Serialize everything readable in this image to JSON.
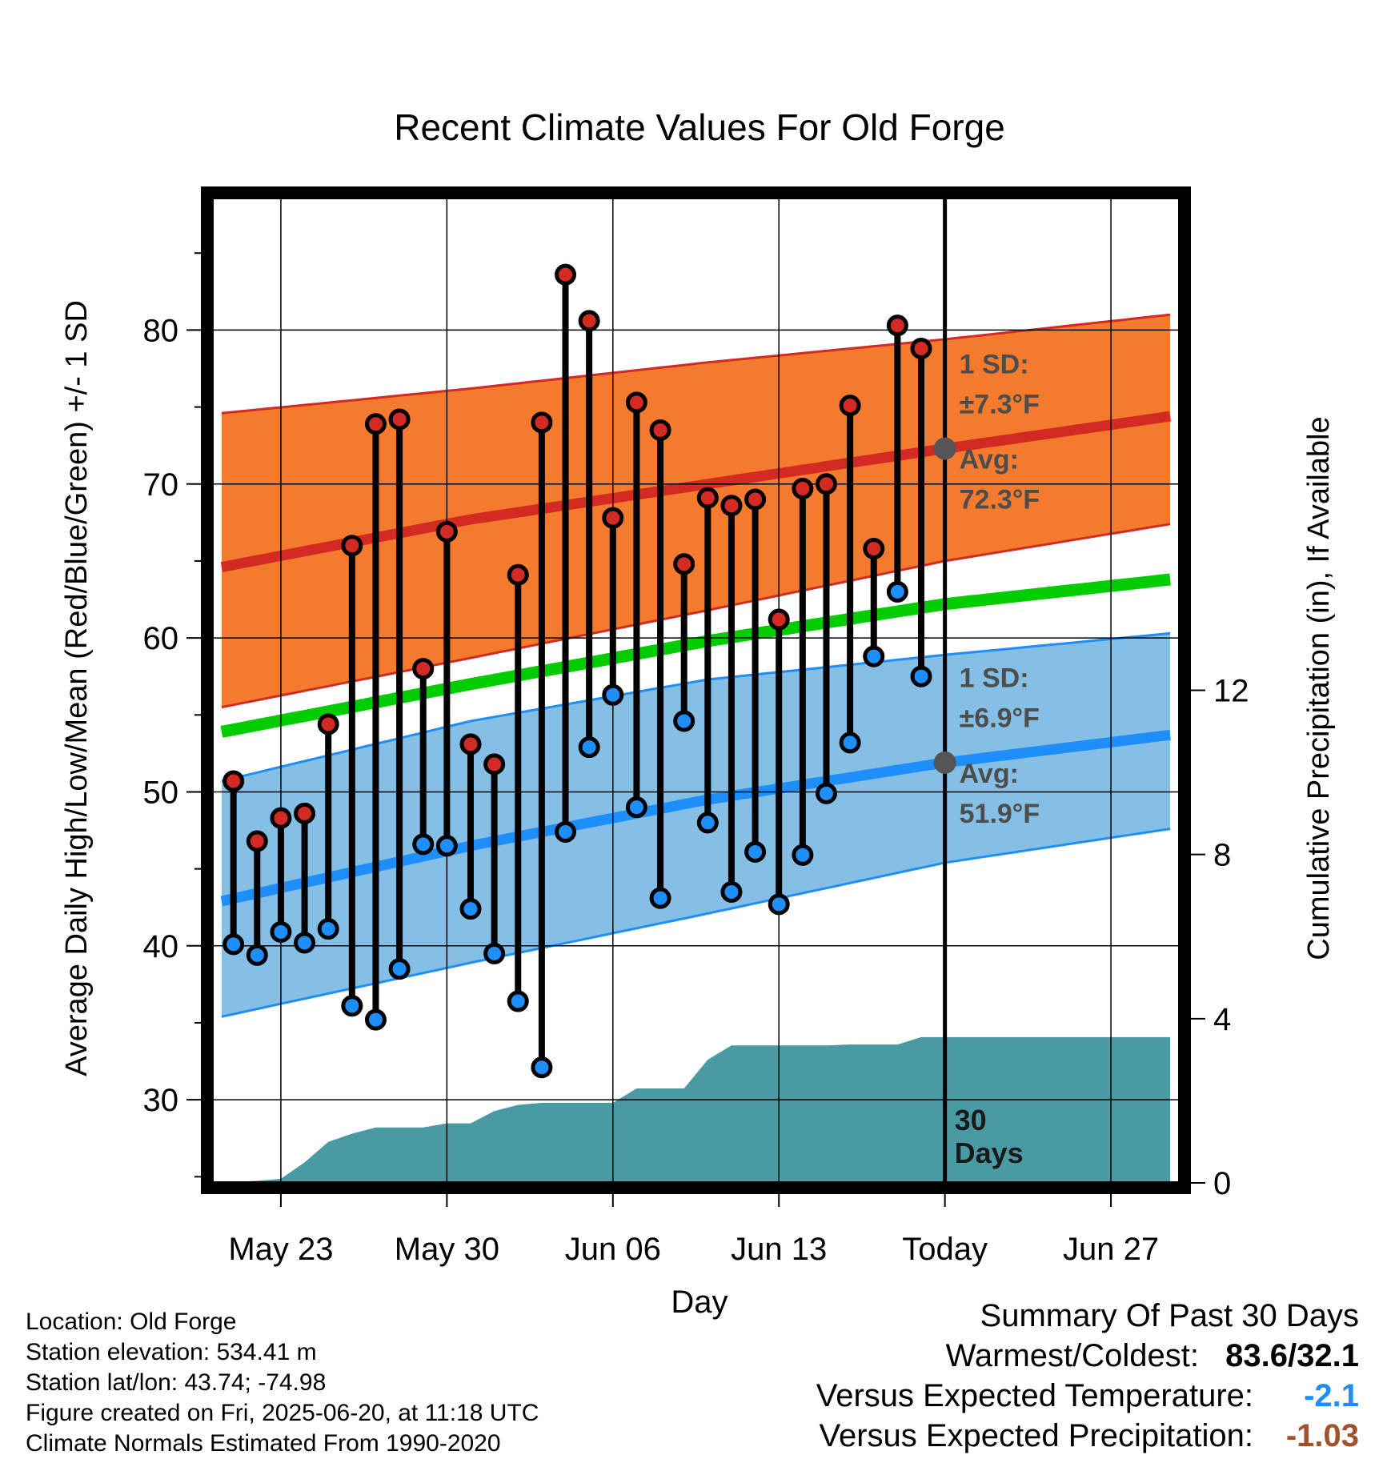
{
  "chart_data": {
    "type": "line",
    "title": "Recent Climate Values For Old Forge",
    "xlabel": "Day",
    "ylabel": "Average Daily High/Low/Mean (Red/Blue/Green) +/- 1 SD",
    "y2label": "Cumulative Precipitation (in), If Available",
    "x_tick_labels": [
      "May 23",
      "May 30",
      "Jun 06",
      "Jun 13",
      "Today",
      "Jun 27"
    ],
    "y_ticks": [
      30,
      40,
      50,
      60,
      70,
      80
    ],
    "y2_ticks": [
      0,
      4,
      8,
      12
    ],
    "ylim": [
      24.6,
      88.6
    ],
    "y2lim": [
      0,
      24
    ],
    "x_range_days": [
      -30.9,
      9.9
    ],
    "today_label": "30 Days",
    "daily_high": [
      50.7,
      46.8,
      48.3,
      48.6,
      54.4,
      66.0,
      73.9,
      74.2,
      58.0,
      66.9,
      53.1,
      51.8,
      64.1,
      74.0,
      83.6,
      80.6,
      67.8,
      75.3,
      73.5,
      64.8,
      69.1,
      68.6,
      69.0,
      61.2,
      69.7,
      70.0,
      75.1,
      65.8,
      80.3,
      78.8
    ],
    "daily_low": [
      40.1,
      39.4,
      40.9,
      40.2,
      41.1,
      36.1,
      35.2,
      38.5,
      46.6,
      46.5,
      42.4,
      39.5,
      36.4,
      32.1,
      47.4,
      52.9,
      56.3,
      49.0,
      43.1,
      54.6,
      48.0,
      43.5,
      46.1,
      42.7,
      45.9,
      49.9,
      53.2,
      58.8,
      63.0,
      57.5
    ],
    "normal_high": {
      "day": [
        -30.5,
        -20,
        -10,
        0,
        9.5
      ],
      "avg": [
        64.6,
        67.7,
        70.0,
        72.3,
        74.4
      ],
      "sd_upper": [
        74.6,
        76.2,
        77.9,
        79.4,
        81.0
      ],
      "sd_lower": [
        55.5,
        58.7,
        61.8,
        65.0,
        67.4
      ]
    },
    "normal_mean": {
      "day": [
        -30.5,
        -20,
        -10,
        0,
        9.5
      ],
      "values": [
        53.9,
        57.0,
        59.8,
        62.2,
        63.8
      ]
    },
    "normal_low": {
      "day": [
        -30.5,
        -20,
        -10,
        0,
        9.5
      ],
      "avg": [
        42.9,
        46.5,
        49.5,
        51.9,
        53.7
      ],
      "sd_upper": [
        50.7,
        54.6,
        57.3,
        58.9,
        60.3
      ],
      "sd_lower": [
        35.4,
        38.9,
        42.1,
        45.4,
        47.6
      ]
    },
    "cumulative_precip": {
      "day": [
        -30.5,
        -29,
        -28,
        -27,
        -26,
        -25,
        -24,
        -23,
        -22,
        -21,
        -20,
        -19,
        -18,
        -17,
        -16,
        -15,
        -14,
        -13,
        -12,
        -11,
        -10,
        -9,
        -8,
        -7,
        -6,
        -5,
        -4,
        -3,
        -2,
        -1,
        0,
        9.5
      ],
      "values": [
        0.0,
        0.05,
        0.1,
        0.5,
        1.0,
        1.2,
        1.35,
        1.35,
        1.35,
        1.45,
        1.45,
        1.75,
        1.9,
        1.95,
        1.95,
        1.95,
        1.95,
        2.3,
        2.3,
        2.3,
        3.0,
        3.35,
        3.35,
        3.35,
        3.35,
        3.35,
        3.37,
        3.37,
        3.37,
        3.55,
        3.55,
        3.55
      ]
    },
    "annotations": [
      {
        "sd_label": "1 SD:",
        "sd_value": "±7.3°F",
        "avg_label": "Avg:",
        "avg_value": "72.3°F"
      },
      {
        "sd_label": "1 SD:",
        "sd_value": "±6.9°F",
        "avg_label": "Avg:",
        "avg_value": "51.9°F"
      }
    ],
    "legend": "none",
    "grid": true
  },
  "colors": {
    "high_band": "#f47b2e",
    "high_line": "#d42a24",
    "low_band": "#85bfe6",
    "low_line": "#1e8ffa",
    "mean_line": "#00cc00",
    "precip": "#4a9aa4",
    "high_marker": "#d42a24",
    "low_marker": "#1e8ffa",
    "annotation_text": "#4d4d4d",
    "temp_anomaly": "#1e8ffa",
    "precip_anomaly": "#a0522d"
  },
  "metadata": {
    "location": "Location: Old Forge",
    "elevation": "Station elevation: 534.41 m",
    "latlon": "Station lat/lon: 43.74; -74.98",
    "created": "Figure created on Fri, 2025-06-20, at 11:18 UTC",
    "normals": "Climate Normals Estimated From 1990-2020"
  },
  "summary": {
    "heading": "Summary Of Past 30 Days",
    "warmest_coldest_label": "Warmest/Coldest:",
    "warmest_coldest_value": "83.6/32.1",
    "temp_label": "Versus Expected Temperature:",
    "temp_value": "-2.1",
    "precip_label": "Versus Expected Precipitation:",
    "precip_value": "-1.03"
  }
}
